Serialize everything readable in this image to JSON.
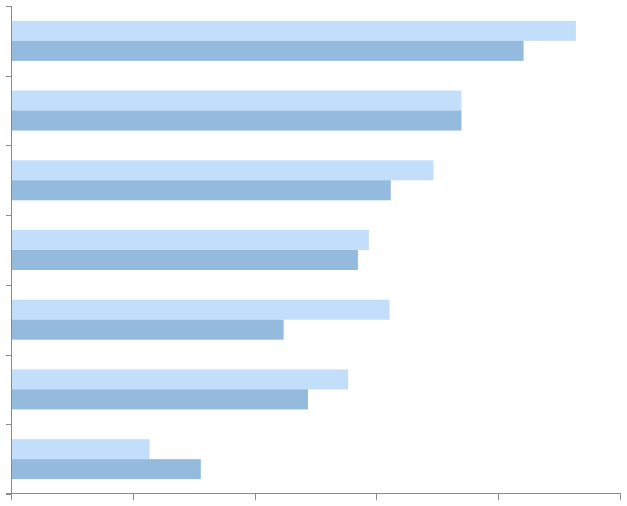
{
  "chart_data": {
    "type": "bar",
    "orientation": "horizontal",
    "title": "",
    "xlabel": "",
    "ylabel": "",
    "categories": [
      "",
      "",
      "",
      "",
      "",
      "",
      ""
    ],
    "xlim": [
      0,
      5
    ],
    "x_ticks": [
      0,
      1,
      2,
      3,
      4,
      5
    ],
    "grid": false,
    "legend": "none",
    "series": [
      {
        "color": "#c2defa",
        "values": [
          4.63,
          3.69,
          3.46,
          2.93,
          3.1,
          2.76,
          1.13
        ]
      },
      {
        "color": "#94bbdd",
        "values": [
          4.2,
          3.69,
          3.11,
          2.84,
          2.23,
          2.43,
          1.55
        ]
      }
    ]
  }
}
